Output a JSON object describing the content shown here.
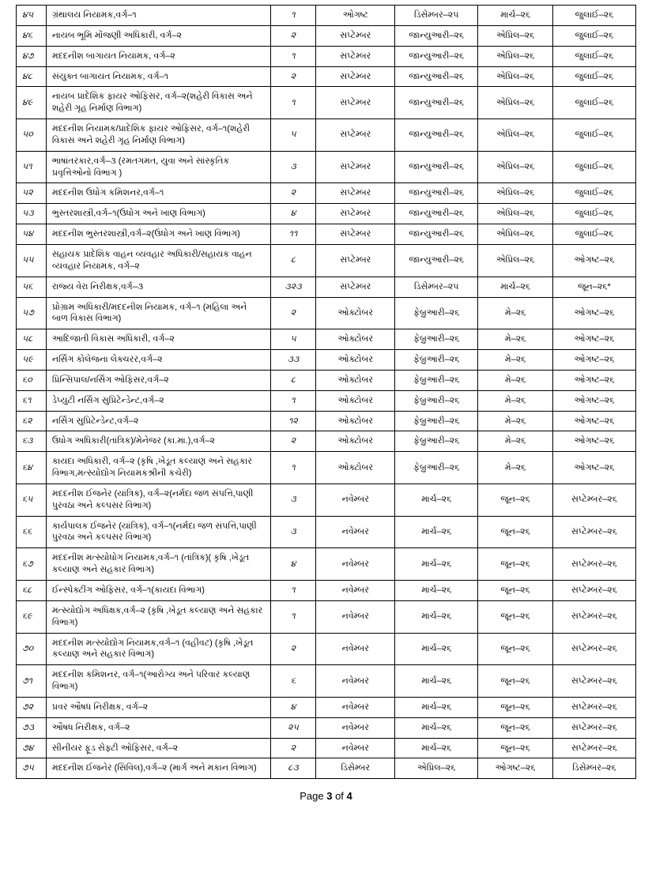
{
  "table": {
    "rows": [
      {
        "sn": "૪૫",
        "title": "ગ્રંથાલય નિયામક,વર્ગ–૧",
        "count": "૧",
        "month": "ઓગષ્ટ",
        "d1": "ડિસેમ્બર–૨૫",
        "d2": "માર્ચ–૨૬",
        "d3": "જુલાઈ–૨૬"
      },
      {
        "sn": "૪૬",
        "title": "નાયબ ભૂમિ મોંજણી અધિકારી, વર્ગ–૨",
        "count": "૨",
        "month": "સપ્ટેમ્બર",
        "d1": "જાન્યુઆરી–૨૬",
        "d2": "એપ્રિલ–૨૬",
        "d3": "જુલાઈ–૨૬"
      },
      {
        "sn": "૪૭",
        "title": "મદદનીશ બાગાયત નિયામક, વર્ગ–૨",
        "count": "૧",
        "month": "સપ્ટેમ્બર",
        "d1": "જાન્યુઆરી–૨૬",
        "d2": "એપ્રિલ–૨૬",
        "d3": "જુલાઈ–૨૬"
      },
      {
        "sn": "૪૮",
        "title": "સંયુક્ત બાગાયત નિયામક, વર્ગ–૧",
        "count": "૨",
        "month": "સપ્ટેમ્બર",
        "d1": "જાન્યુઆરી–૨૬",
        "d2": "એપ્રિલ–૨૬",
        "d3": "જુલાઈ–૨૬"
      },
      {
        "sn": "૪૯",
        "title": "નાયબ પ્રાદેશિક ફાયર ઓફિસર, વર્ગ–૨(શહેરી વિકાસ અને શહેરી ગૃહ નિર્માણ વિભાગ)",
        "count": "૧",
        "month": "સપ્ટેમ્બર",
        "d1": "જાન્યુઆરી–૨૬",
        "d2": "એપ્રિલ–૨૬",
        "d3": "જુલાઈ–૨૬"
      },
      {
        "sn": "૫૦",
        "title": "મદદનીશ નિયામક/પ્રાદેશિક ફાયર ઓફિસર, વર્ગ–૧(શહેરી વિકાસ અને શહેરી ગૃહ નિર્માણ વિભાગ)",
        "count": "૫",
        "month": "સપ્ટેમ્બર",
        "d1": "જાન્યુઆરી–૨૬",
        "d2": "એપ્રિલ–૨૬",
        "d3": "જુલાઈ–૨૬"
      },
      {
        "sn": "૫૧",
        "title": "ભાષાંતરકાર,વર્ગ–૩ (રમતગમત, યુવા અને સાંસ્કૃતિક પ્રવૃત્તિઓનો વિભાગ )",
        "count": "૩",
        "month": "સપ્ટેમ્બર",
        "d1": "જાન્યુઆરી–૨૬",
        "d2": "એપ્રિલ–૨૬",
        "d3": "જુલાઈ–૨૬"
      },
      {
        "sn": "૫૨",
        "title": "મદદનીશ ઉધોગ કમિશનર,વર્ગ–૧",
        "count": "૨",
        "month": "સપ્ટેમ્બર",
        "d1": "જાન્યુઆરી–૨૬",
        "d2": "એપ્રિલ–૨૬",
        "d3": "જુલાઈ–૨૬"
      },
      {
        "sn": "૫૩",
        "title": "ભુસ્તરશાસ્ત્રી,વર્ગ–૧(ઉધોગ અને ખાણ વિભાગ)",
        "count": "૪",
        "month": "સપ્ટેમ્બર",
        "d1": "જાન્યુઆરી–૨૬",
        "d2": "એપ્રિલ–૨૬",
        "d3": "જુલાઈ–૨૬"
      },
      {
        "sn": "૫૪",
        "title": "મદદનીશ ભુસ્તરશાસ્ત્રી,વર્ગ–૨(ઉધોગ અને ખાણ વિભાગ)",
        "count": "૧૧",
        "month": "સપ્ટેમ્બર",
        "d1": "જાન્યુઆરી–૨૬",
        "d2": "એપ્રિલ–૨૬",
        "d3": "જુલાઈ–૨૬"
      },
      {
        "sn": "૫૫",
        "title": "સહાયક પ્રાદેશિક વાહન વ્યવહાર અધિકારી/સહાયક વાહન વ્યવહાર નિયામક, વર્ગ–૨",
        "count": "૮",
        "month": "સપ્ટેમ્બર",
        "d1": "જાન્યુઆરી–૨૬",
        "d2": "એપ્રિલ–૨૬",
        "d3": "ઓગષ્ટ–૨૬"
      },
      {
        "sn": "૫૬",
        "title": "રાજ્ય વેરા નિરીક્ષક,વર્ગ–૩",
        "count": "૩૨૩",
        "month": "સપ્ટેમ્બર",
        "d1": "ડિસેમ્બર–૨૫",
        "d2": "માર્ચ–૨૬",
        "d3": "જૂન–૨૬*"
      },
      {
        "sn": "૫૭",
        "title": "પ્રોગ્રામ અધિકારી/મદદનીશ નિયામક, વર્ગ–૧ (મહિલા અને બાળ વિકાસ વિભાગ)",
        "count": "૨",
        "month": "ઓક્ટોબર",
        "d1": "ફેબ્રુઆરી–૨૬",
        "d2": "મે–૨૬",
        "d3": "ઓગષ્ટ–૨૬"
      },
      {
        "sn": "૫૮",
        "title": "આદિજાતી વિકાસ અધિકારી, વર્ગ–૨",
        "count": "૫",
        "month": "ઓક્ટોબર",
        "d1": "ફેબ્રુઆરી–૨૬",
        "d2": "મે–૨૬",
        "d3": "ઓગષ્ટ–૨૬"
      },
      {
        "sn": "૫૯",
        "title": "નર્સિંગ કોલેજના લેક્ચરર,વર્ગ–૨",
        "count": "૩૩",
        "month": "ઓક્ટોબર",
        "d1": "ફેબ્રુઆરી–૨૬",
        "d2": "મે–૨૬",
        "d3": "ઓગષ્ટ–૨૬"
      },
      {
        "sn": "૬૦",
        "title": "પ્રિન્સિપાલ/નર્સિંગ ઓફિસર,વર્ગ–૨",
        "count": "૮",
        "month": "ઓક્ટોબર",
        "d1": "ફેબ્રુઆરી–૨૬",
        "d2": "મે–૨૬",
        "d3": "ઓગષ્ટ–૨૬"
      },
      {
        "sn": "૬૧",
        "title": "ડેપ્યુટી નર્સિંગ સુપ્રિટેન્ડેન્ટ,વર્ગ–૨",
        "count": "૧",
        "month": "ઓક્ટોબર",
        "d1": "ફેબ્રુઆરી–૨૬",
        "d2": "મે–૨૬",
        "d3": "ઓગષ્ટ–૨૬"
      },
      {
        "sn": "૬૨",
        "title": "નર્સિંગ સુપ્રિટેન્ડેન્ટ,વર્ગ–૨",
        "count": "૧૨",
        "month": "ઓક્ટોબર",
        "d1": "ફેબ્રુઆરી–૨૬",
        "d2": "મે–૨૬",
        "d3": "ઓગષ્ટ–૨૬"
      },
      {
        "sn": "૬૩",
        "title": "ઉધોગ અધિકારી(તાંત્રિક)/મેનેજર (કા.મા.),વર્ગ–૨",
        "count": "૨",
        "month": "ઓક્ટોબર",
        "d1": "ફેબ્રુઆરી–૨૬",
        "d2": "મે–૨૬",
        "d3": "ઓગષ્ટ–૨૬"
      },
      {
        "sn": "૬૪",
        "title": "કાયદા અધિકારી, વર્ગ–૨  (કૃષિ ,ખેડૂત કલ્યાણ અને સહકાર વિભાગ,મત્સ્યોદ્યોગ નિયામકશ્રીની કચેરી)",
        "count": "૧",
        "month": "ઓક્ટોબર",
        "d1": "ફેબ્રુઆરી–૨૬",
        "d2": "મે–૨૬",
        "d3": "ઓગષ્ટ–૨૬"
      },
      {
        "sn": "૬૫",
        "title": "મદદનીશ ઈજનેર (યાંત્રિક), વર્ગ–૨(નર્મદા જળ સંપત્તિ,પાણી પુરવઠા અને કલ્પસર વિભાગ)",
        "count": "૩",
        "month": "નવેમ્બર",
        "d1": "માર્ચ–૨૬",
        "d2": "જૂન–૨૬",
        "d3": "સપ્ટેમ્બર–૨૬"
      },
      {
        "sn": "૬૬",
        "title": "કાર્યપાલક ઈજનેર (યાંત્રિક), વર્ગ–૧(નર્મદા જળ સંપત્તિ,પાણી પુરવઠા અને કલ્પસર વિભાગ)",
        "count": "૩",
        "month": "નવેમ્બર",
        "d1": "માર્ચ–૨૬",
        "d2": "જૂન–૨૬",
        "d3": "સપ્ટેમ્બર–૨૬"
      },
      {
        "sn": "૬૭",
        "title": "મદદનીશ મત્સ્યોધોગ નિયામક,વર્ગ–૧ (તાંત્રિક)( કૃષિ ,ખેડૂત કલ્યાણ અને સહકાર વિભાગ)",
        "count": "૪",
        "month": "નવેમ્બર",
        "d1": "માર્ચ–૨૬",
        "d2": "જૂન–૨૬",
        "d3": "સપ્ટેમ્બર–૨૬"
      },
      {
        "sn": "૬૮",
        "title": "ઈન્સ્પેક્ટીંગ ઓફિસર, વર્ગ–૧(કાયદા વિભાગ)",
        "count": "૧",
        "month": "નવેમ્બર",
        "d1": "માર્ચ–૨૬",
        "d2": "જૂન–૨૬",
        "d3": "સપ્ટેમ્બર–૨૬"
      },
      {
        "sn": "૬૯",
        "title": "મત્સ્યોદ્યોગ અધિક્ષક,વર્ગ–૨ (કૃષિ ,ખેડૂત કલ્યાણ અને સહકાર વિભાગ)",
        "count": "૧",
        "month": "નવેમ્બર",
        "d1": "માર્ચ–૨૬",
        "d2": "જૂન–૨૬",
        "d3": "સપ્ટેમ્બર–૨૬"
      },
      {
        "sn": "૭૦",
        "title": "મદદનીશ મત્સ્યોદ્યોગ નિયામક,વર્ગ–૧ (વહીવટ) (કૃષિ ,ખેડૂત કલ્યાણ અને સહકાર વિભાગ)",
        "count": "૨",
        "month": "નવેમ્બર",
        "d1": "માર્ચ–૨૬",
        "d2": "જૂન–૨૬",
        "d3": "સપ્ટેમ્બર–૨૬"
      },
      {
        "sn": "૭૧",
        "title": "મદદનીશ કમિશનર, વર્ગ–૧(આરોગ્ય અને પરિવાર કલ્યાણ વિભાગ)",
        "count": "૬",
        "month": "નવેમ્બર",
        "d1": "માર્ચ–૨૬",
        "d2": "જૂન–૨૬",
        "d3": "સપ્ટેમ્બર–૨૬"
      },
      {
        "sn": "૭૨",
        "title": "પ્રવર ઔષધ નિરીક્ષક, વર્ગ–૨",
        "count": "૪",
        "month": "નવેમ્બર",
        "d1": "માર્ચ–૨૬",
        "d2": "જૂન–૨૬",
        "d3": "સપ્ટેમ્બર–૨૬"
      },
      {
        "sn": "૭૩",
        "title": "ઔષધ નિરીક્ષક, વર્ગ–૨",
        "count": "૨૫",
        "month": "નવેમ્બર",
        "d1": "માર્ચ–૨૬",
        "d2": "જૂન–૨૬",
        "d3": "સપ્ટેમ્બર–૨૬"
      },
      {
        "sn": "૭૪",
        "title": "સીનીયર ફૂડ સેફ્ટી ઓફિસર, વર્ગ–૨",
        "count": "૨",
        "month": "નવેમ્બર",
        "d1": "માર્ચ–૨૬",
        "d2": "જૂન–૨૬",
        "d3": "સપ્ટેમ્બર–૨૬"
      },
      {
        "sn": "૭૫",
        "title": "મદદનીશ ઈજનેર (સિવિલ),વર્ગ–૨ (માર્ગ અને મકાન વિભાગ)",
        "count": "૮૩",
        "month": "ડિસેમ્બર",
        "d1": "એપ્રિલ–૨૬",
        "d2": "ઓગષ્ટ–૨૬",
        "d3": "ડિસેમ્બર–૨૬"
      }
    ]
  },
  "footer": {
    "prefix": "Page ",
    "current": "3",
    "middle": " of ",
    "total": "4"
  }
}
